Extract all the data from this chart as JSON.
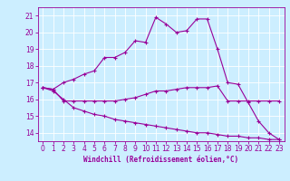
{
  "xlabel": "Windchill (Refroidissement éolien,°C)",
  "background_color": "#cceeff",
  "line_color": "#990099",
  "grid_color": "#aaddee",
  "xlim": [
    -0.5,
    23.5
  ],
  "ylim": [
    13.5,
    21.5
  ],
  "yticks": [
    14,
    15,
    16,
    17,
    18,
    19,
    20,
    21
  ],
  "xticks": [
    0,
    1,
    2,
    3,
    4,
    5,
    6,
    7,
    8,
    9,
    10,
    11,
    12,
    13,
    14,
    15,
    16,
    17,
    18,
    19,
    20,
    21,
    22,
    23
  ],
  "series1_x": [
    0,
    1,
    2,
    3,
    4,
    5,
    6,
    7,
    8,
    9,
    10,
    11,
    12,
    13,
    14,
    15,
    16,
    17,
    18,
    19,
    20,
    21,
    22,
    23
  ],
  "series1_y": [
    16.7,
    16.6,
    17.0,
    17.2,
    17.5,
    17.7,
    18.5,
    18.5,
    18.8,
    19.5,
    19.4,
    20.9,
    20.5,
    20.0,
    20.1,
    20.8,
    20.8,
    19.0,
    17.0,
    16.9,
    15.8,
    14.7,
    14.0,
    13.6
  ],
  "series2_x": [
    0,
    1,
    2,
    3,
    4,
    5,
    6,
    7,
    8,
    9,
    10,
    11,
    12,
    13,
    14,
    15,
    16,
    17,
    18,
    19,
    20,
    21,
    22,
    23
  ],
  "series2_y": [
    16.7,
    16.6,
    15.9,
    15.9,
    15.9,
    15.9,
    15.9,
    15.9,
    16.0,
    16.1,
    16.3,
    16.5,
    16.5,
    16.6,
    16.7,
    16.7,
    16.7,
    16.8,
    15.9,
    15.9,
    15.9,
    15.9,
    15.9,
    15.9
  ],
  "series3_x": [
    0,
    1,
    2,
    3,
    4,
    5,
    6,
    7,
    8,
    9,
    10,
    11,
    12,
    13,
    14,
    15,
    16,
    17,
    18,
    19,
    20,
    21,
    22,
    23
  ],
  "series3_y": [
    16.7,
    16.5,
    16.0,
    15.5,
    15.3,
    15.1,
    15.0,
    14.8,
    14.7,
    14.6,
    14.5,
    14.4,
    14.3,
    14.2,
    14.1,
    14.0,
    14.0,
    13.9,
    13.8,
    13.8,
    13.7,
    13.7,
    13.6,
    13.6
  ],
  "label_fontsize": 5.5,
  "tick_fontsize": 5.5
}
